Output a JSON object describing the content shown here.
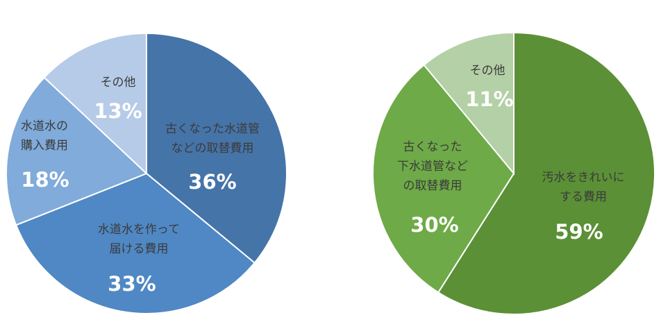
{
  "chart_data": [
    {
      "type": "pie",
      "title": "",
      "start_angle_deg": 0,
      "direction": "clockwise",
      "categories": [
        "古くなった水道管などの取替費用",
        "水道水を作って届ける費用",
        "水道水の購入費用",
        "その他"
      ],
      "values": [
        36,
        33,
        18,
        13
      ],
      "unit": "%",
      "colors": [
        "#4574a8",
        "#4f88c4",
        "#80abda",
        "#b6cbe7"
      ],
      "slices": [
        {
          "label_lines": [
            "古くなった水道管",
            "などの取替費用"
          ],
          "value": 36,
          "value_label": "36%",
          "color": "#4574a8"
        },
        {
          "label_lines": [
            "水道水を作って",
            "届ける費用"
          ],
          "value": 33,
          "value_label": "33%",
          "color": "#4f88c4"
        },
        {
          "label_lines": [
            "水道水の",
            "購入費用"
          ],
          "value": 18,
          "value_label": "18%",
          "color": "#80abda"
        },
        {
          "label_lines": [
            "その他"
          ],
          "value": 13,
          "value_label": "13%",
          "color": "#b6cbe7"
        }
      ]
    },
    {
      "type": "pie",
      "title": "",
      "start_angle_deg": 0,
      "direction": "clockwise",
      "categories": [
        "汚水をきれいにする費用",
        "古くなった下水道管などの取替費用",
        "その他"
      ],
      "values": [
        59,
        30,
        11
      ],
      "unit": "%",
      "colors": [
        "#5b9036",
        "#6eaa47",
        "#b4d0a6"
      ],
      "slices": [
        {
          "label_lines": [
            "汚水をきれいに",
            "する費用"
          ],
          "value": 59,
          "value_label": "59%",
          "color": "#5b9036"
        },
        {
          "label_lines": [
            "古くなった",
            "下水道管など",
            "の取替費用"
          ],
          "value": 30,
          "value_label": "30%",
          "color": "#6eaa47"
        },
        {
          "label_lines": [
            "その他"
          ],
          "value": 11,
          "value_label": "11%",
          "color": "#b4d0a6"
        }
      ]
    }
  ]
}
